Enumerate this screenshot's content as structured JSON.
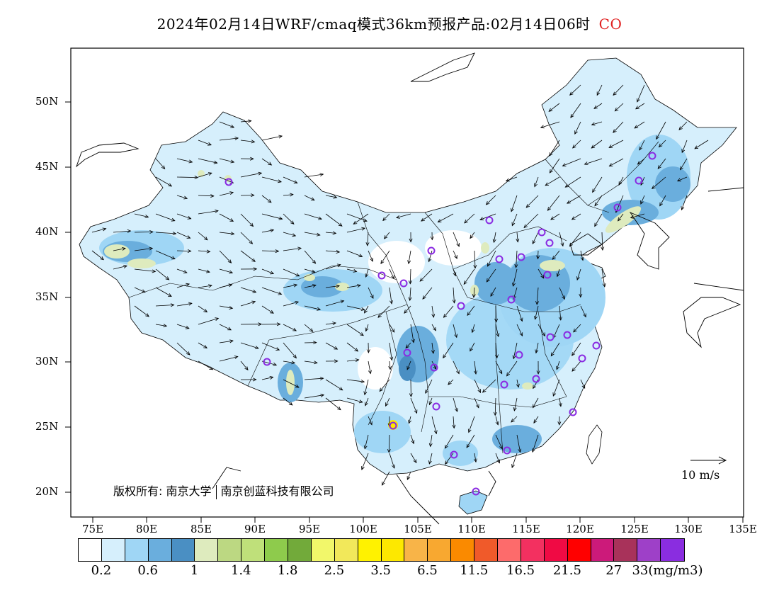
{
  "title": {
    "text": "2024年02月14日WRF/cmaq模式36km预报产品:02月14日06时",
    "species": "CO"
  },
  "latitudes": [
    "50N",
    "45N",
    "40N",
    "35N",
    "30N",
    "25N",
    "20N"
  ],
  "longitudes": [
    "75E",
    "80E",
    "85E",
    "90E",
    "95E",
    "100E",
    "105E",
    "110E",
    "115E",
    "120E",
    "125E",
    "130E",
    "135E"
  ],
  "copyright": {
    "prefix": "版权所有:",
    "org1": "南京大学",
    "org2": "南京创蓝科技有限公司"
  },
  "wind_reference": "10 m/s",
  "legend": {
    "colors": [
      "#ffffff",
      "#d6effc",
      "#9fd6f5",
      "#6aaedd",
      "#4a8fc3",
      "#deebbe",
      "#bcd882",
      "#bfe07a",
      "#8ecb4c",
      "#72aa3a",
      "#f2f76a",
      "#f2e85a",
      "#fff200",
      "#fde800",
      "#f8b448",
      "#f8a830",
      "#fa8a00",
      "#f05a2a",
      "#fd6b6b",
      "#f33060",
      "#f00a44",
      "#ff0000",
      "#cc1a7a",
      "#a8325a",
      "#9e40c8",
      "#8a2de0"
    ],
    "labels": [
      "0.2",
      "0.6",
      "1",
      "1.4",
      "1.8",
      "2.5",
      "3.5",
      "6.5",
      "11.5",
      "16.5",
      "21.5",
      "27",
      "33(mg/m3)"
    ]
  },
  "map_colors": {
    "concentration_light": "#d6effc",
    "concentration_mid": "#9fd6f5",
    "concentration_high": "#6aaedd",
    "concentration_dark": "#4a8fc3",
    "hotspot": "#deebbe",
    "hotspot_core": "#bcd882",
    "city_marker": "#8a2be2"
  }
}
